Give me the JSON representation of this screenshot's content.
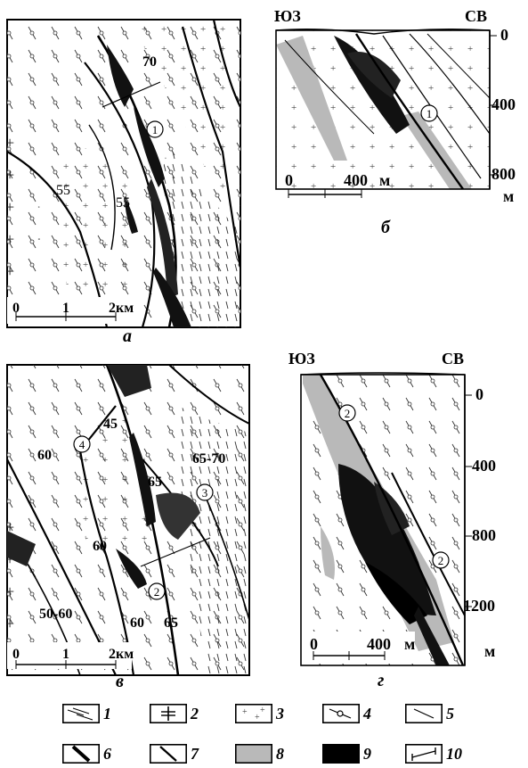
{
  "panels": {
    "a": {
      "caption": "а",
      "dips": [
        "70",
        "55",
        "55"
      ],
      "circle": "1",
      "scale": {
        "ticks": [
          "0",
          "1",
          "2км"
        ]
      }
    },
    "b": {
      "caption": "б",
      "left_dir": "ЮЗ",
      "right_dir": "СВ",
      "depths": [
        "0",
        "400",
        "800"
      ],
      "depth_unit": "м",
      "circle": "1",
      "scale": {
        "ticks": [
          "0",
          "400"
        ],
        "unit": "м"
      }
    },
    "v": {
      "caption": "в",
      "dips": [
        "45",
        "60",
        "65-70",
        "65",
        "60",
        "50-60",
        "60",
        "65"
      ],
      "circles": [
        "4",
        "3",
        "2"
      ],
      "scale": {
        "ticks": [
          "0",
          "1",
          "2км"
        ]
      }
    },
    "g": {
      "caption": "г",
      "left_dir": "ЮЗ",
      "right_dir": "СВ",
      "depths": [
        "0",
        "400",
        "800",
        "1200"
      ],
      "depth_unit": "м",
      "circles": [
        "2",
        "2"
      ],
      "scale": {
        "ticks": [
          "0",
          "400"
        ],
        "unit": "м"
      }
    }
  },
  "legend": [
    {
      "num": "1",
      "icon": "dash-lines"
    },
    {
      "num": "2",
      "icon": "cross"
    },
    {
      "num": "3",
      "icon": "plus-dots"
    },
    {
      "num": "4",
      "icon": "tick-circle"
    },
    {
      "num": "5",
      "icon": "thin-line"
    },
    {
      "num": "6",
      "icon": "thick-line"
    },
    {
      "num": "7",
      "icon": "medium-line"
    },
    {
      "num": "8",
      "icon": "gray-fill",
      "color": "#b9b9b9"
    },
    {
      "num": "9",
      "icon": "black-fill",
      "color": "#000000"
    },
    {
      "num": "10",
      "icon": "section-line"
    }
  ]
}
